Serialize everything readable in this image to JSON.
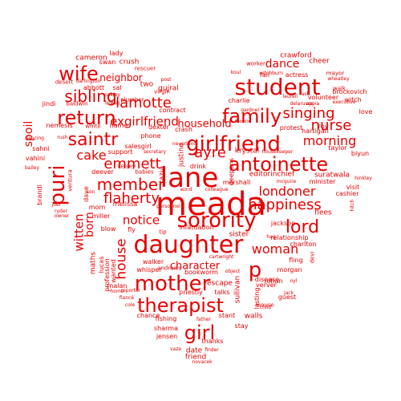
{
  "colors": {
    "word": "#e60000",
    "background": "#ffffff"
  },
  "words": [
    {
      "text": "meada"
    },
    {
      "text": "lane"
    },
    {
      "text": "girlfriend"
    },
    {
      "text": "student"
    },
    {
      "text": "daughter"
    },
    {
      "text": "family"
    },
    {
      "text": "antoinette"
    },
    {
      "text": "sorority"
    },
    {
      "text": "mother"
    },
    {
      "text": "therapist"
    },
    {
      "text": "return"
    },
    {
      "text": "lord"
    },
    {
      "text": "puri"
    },
    {
      "text": "saintr"
    },
    {
      "text": "member"
    },
    {
      "text": "girl"
    },
    {
      "text": "p"
    },
    {
      "text": "wife"
    },
    {
      "text": "lamotte"
    },
    {
      "text": "sibling"
    },
    {
      "text": "singing"
    },
    {
      "text": "morning"
    },
    {
      "text": "nurse"
    },
    {
      "text": "happiness"
    },
    {
      "text": "londoner"
    },
    {
      "text": "woman"
    },
    {
      "text": "flaherty"
    },
    {
      "text": "emmett"
    },
    {
      "text": "ayre"
    },
    {
      "text": "house"
    },
    {
      "text": "dance"
    },
    {
      "text": "exgirlfriend"
    },
    {
      "text": "witten"
    },
    {
      "text": "born"
    },
    {
      "text": "cake"
    },
    {
      "text": "notice"
    },
    {
      "text": "household"
    },
    {
      "text": "character"
    },
    {
      "text": "neighbor"
    },
    {
      "text": "spoil"
    },
    {
      "text": "cameron"
    },
    {
      "text": "crawford"
    },
    {
      "text": "lady"
    },
    {
      "text": "swan"
    },
    {
      "text": "crush"
    },
    {
      "text": "abbott"
    },
    {
      "text": "sal"
    },
    {
      "text": "two"
    },
    {
      "text": "gujral"
    },
    {
      "text": "jindi"
    },
    {
      "text": "baldwin"
    },
    {
      "text": "nemesis"
    },
    {
      "text": "sahni"
    },
    {
      "text": "vahini"
    },
    {
      "text": "brandi"
    },
    {
      "text": "deever"
    },
    {
      "text": "babies"
    },
    {
      "text": "support"
    },
    {
      "text": "kelsey"
    },
    {
      "text": "salesgirl"
    },
    {
      "text": "phone"
    },
    {
      "text": "crash"
    },
    {
      "text": "drink"
    },
    {
      "text": "krystal"
    },
    {
      "text": "editorinchief"
    },
    {
      "text": "suratwala"
    },
    {
      "text": "minister"
    },
    {
      "text": "cashier"
    },
    {
      "text": "flees"
    },
    {
      "text": "visit"
    },
    {
      "text": "biyun"
    },
    {
      "text": "taylor"
    },
    {
      "text": "protest"
    },
    {
      "text": "hartigan"
    },
    {
      "text": "volunteer"
    },
    {
      "text": "walk"
    },
    {
      "text": "mayor"
    },
    {
      "text": "witch"
    },
    {
      "text": "cheer"
    },
    {
      "text": "actress"
    },
    {
      "text": "fall"
    },
    {
      "text": "charlie"
    },
    {
      "text": "love"
    },
    {
      "text": "roy"
    },
    {
      "text": "jackson"
    },
    {
      "text": "relationship"
    },
    {
      "text": "charlton"
    },
    {
      "text": "fling"
    },
    {
      "text": "devi"
    },
    {
      "text": "morgan"
    },
    {
      "text": "rohan"
    },
    {
      "text": "guest"
    },
    {
      "text": "verver"
    },
    {
      "text": "disease"
    },
    {
      "text": "sister"
    },
    {
      "text": "walls"
    },
    {
      "text": "stay"
    },
    {
      "text": "stant"
    },
    {
      "text": "thanks"
    },
    {
      "text": "date"
    },
    {
      "text": "friend"
    },
    {
      "text": "chance"
    },
    {
      "text": "fishing"
    },
    {
      "text": "sharma"
    },
    {
      "text": "jensen"
    },
    {
      "text": "priestly"
    },
    {
      "text": "talks"
    },
    {
      "text": "escape"
    },
    {
      "text": "bookworm"
    },
    {
      "text": "walker"
    },
    {
      "text": "whisper"
    },
    {
      "text": "andrews"
    },
    {
      "text": "malan"
    },
    {
      "text": "infatuation"
    },
    {
      "text": "tip"
    },
    {
      "text": "fly"
    },
    {
      "text": "blow"
    },
    {
      "text": "miller"
    },
    {
      "text": "mom"
    },
    {
      "text": "melissa"
    },
    {
      "text": "dave"
    },
    {
      "text": "ventura"
    },
    {
      "text": "sullivan"
    },
    {
      "text": "marshall"
    },
    {
      "text": "name"
    },
    {
      "text": "white"
    },
    {
      "text": "dexter"
    },
    {
      "text": "contract"
    },
    {
      "text": "virgin"
    },
    {
      "text": "plumber"
    },
    {
      "text": "rescuer"
    },
    {
      "text": "desert"
    },
    {
      "text": "brockovich"
    },
    {
      "text": "justine"
    },
    {
      "text": "razia"
    },
    {
      "text": "deepens"
    },
    {
      "text": "maths"
    },
    {
      "text": "lucas"
    },
    {
      "text": "profession"
    },
    {
      "text": "wanted"
    },
    {
      "text": "lewin"
    },
    {
      "text": "lasting"
    },
    {
      "text": "mouse"
    },
    {
      "text": "jack"
    },
    {
      "text": "dancing"
    },
    {
      "text": "ash"
    },
    {
      "text": "rush"
    },
    {
      "text": "joel"
    },
    {
      "text": "koul"
    },
    {
      "text": "witchburn"
    },
    {
      "text": "worker"
    },
    {
      "text": "neverland"
    },
    {
      "text": "darlington"
    },
    {
      "text": "wheatley"
    },
    {
      "text": "executive"
    },
    {
      "text": "appia"
    },
    {
      "text": "lauren"
    },
    {
      "text": "moone"
    },
    {
      "text": "gardner"
    },
    {
      "text": "post"
    },
    {
      "text": "secretary"
    },
    {
      "text": "housekeeper"
    },
    {
      "text": "mcguire"
    },
    {
      "text": "personnel"
    },
    {
      "text": "hinkley"
    },
    {
      "text": "hitch"
    },
    {
      "text": "colleague"
    },
    {
      "text": "word"
    },
    {
      "text": "cartwright"
    },
    {
      "text": "fiancé"
    },
    {
      "text": "cole"
    },
    {
      "text": "child"
    },
    {
      "text": "vaze"
    },
    {
      "text": "finder"
    },
    {
      "text": "novacek"
    },
    {
      "text": "father"
    },
    {
      "text": "owner"
    },
    {
      "text": "son"
    },
    {
      "text": "reporter"
    },
    {
      "text": "home"
    },
    {
      "text": "object"
    },
    {
      "text": "delarusso"
    },
    {
      "text": "oyl"
    },
    {
      "text": "hag"
    },
    {
      "text": "bailey"
    },
    {
      "text": "ryder"
    },
    {
      "text": "oakley"
    }
  ]
}
